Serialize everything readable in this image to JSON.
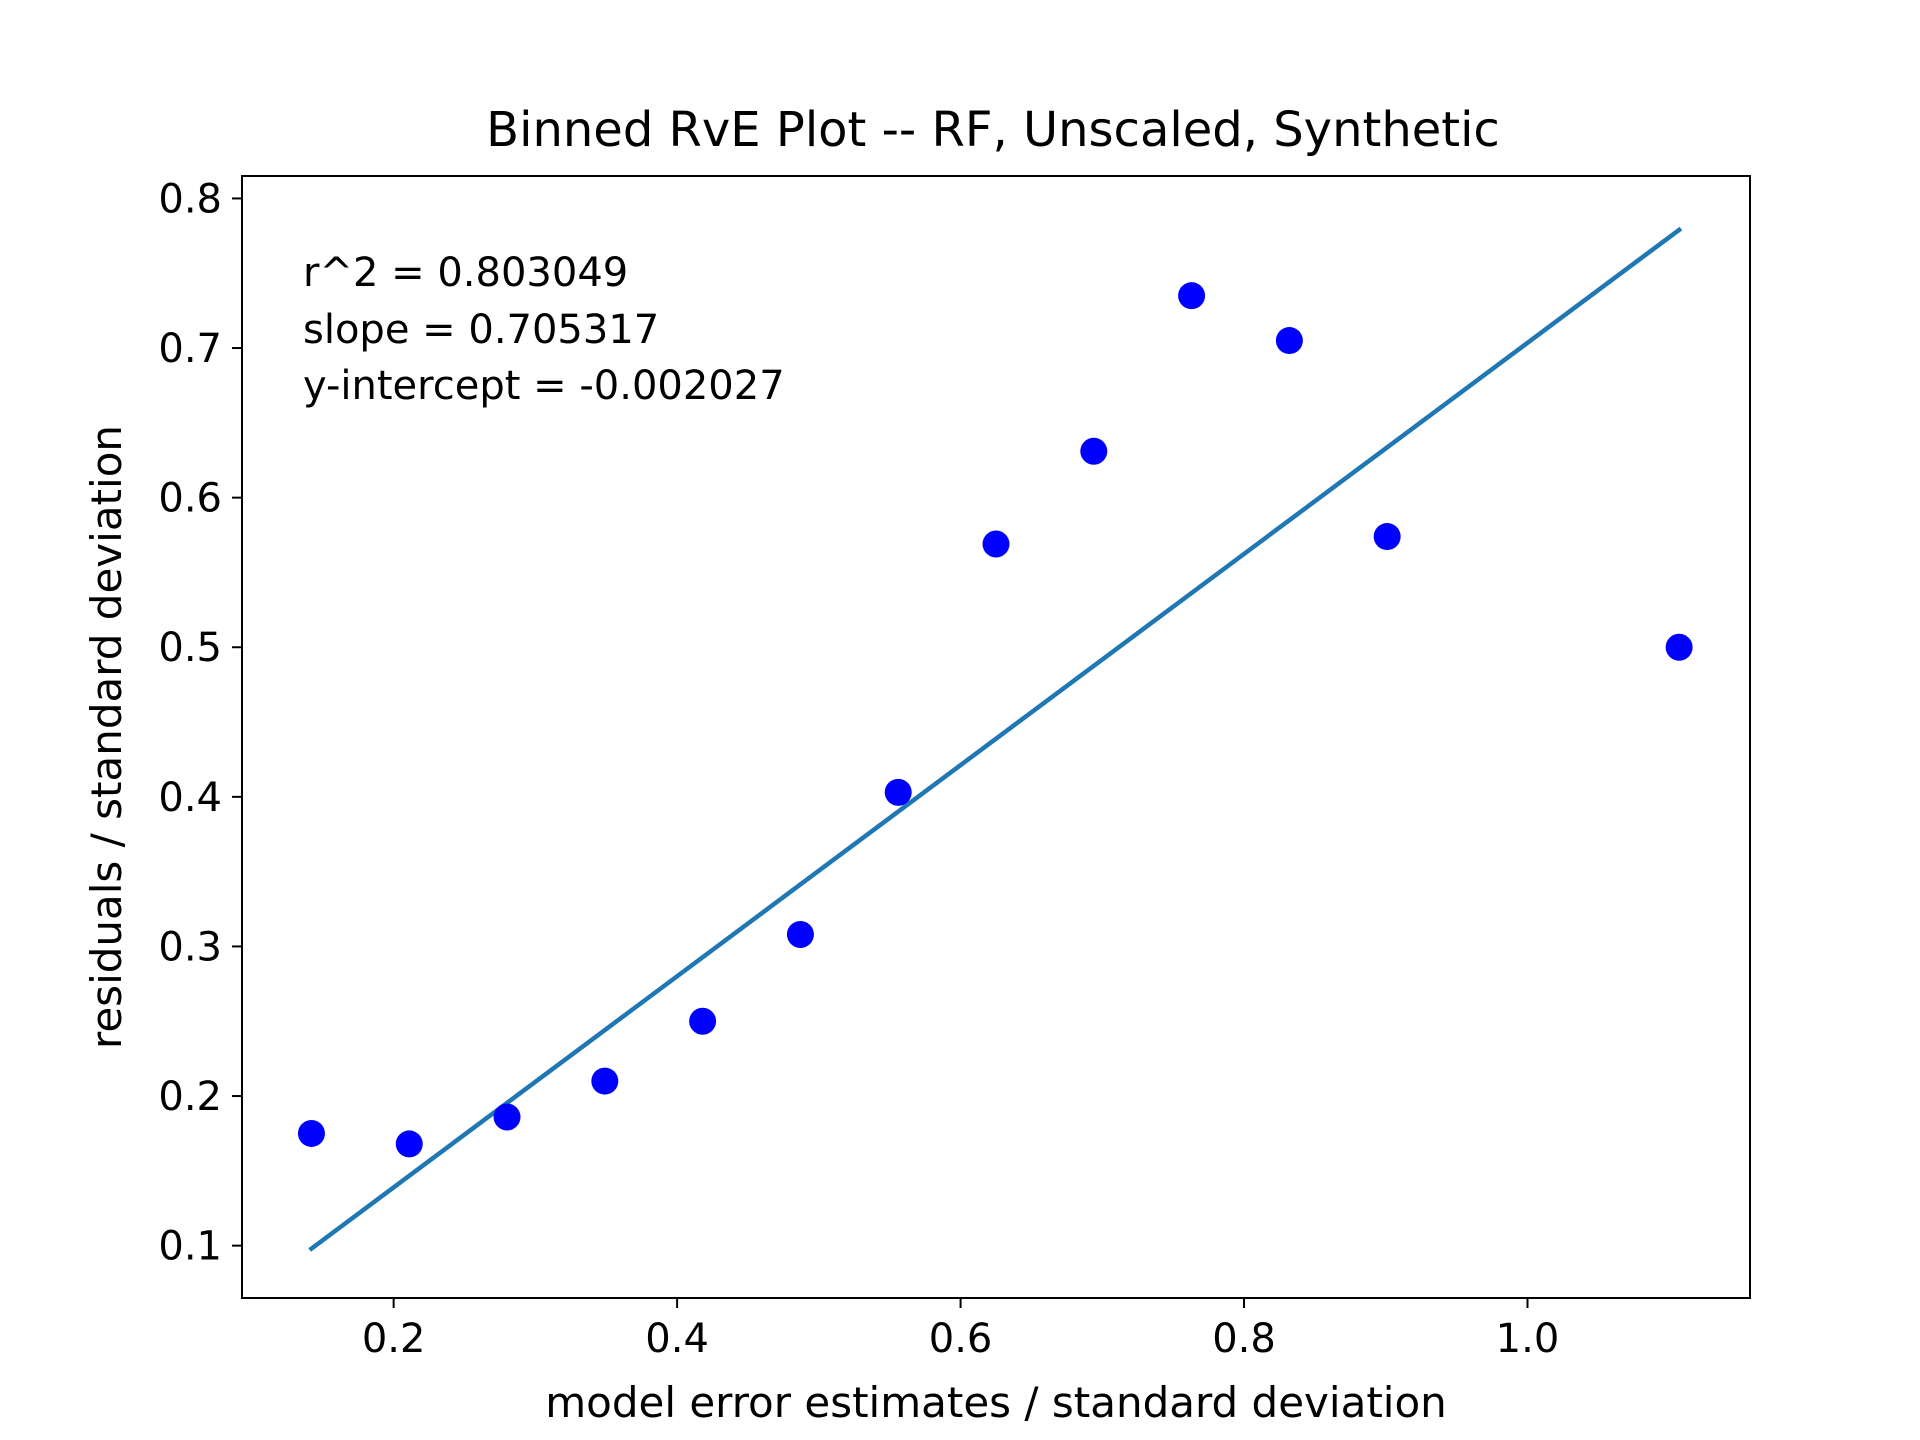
{
  "chart_data": {
    "type": "scatter",
    "title": "Binned RvE Plot -- RF, Unscaled, Synthetic",
    "xlabel": "model error estimates / standard deviation",
    "ylabel": "residuals / standard deviation",
    "xlim": [
      0.093,
      1.157
    ],
    "ylim": [
      0.065,
      0.815
    ],
    "xticks": [
      0.2,
      0.4,
      0.6,
      0.8,
      1.0
    ],
    "xtick_labels": [
      "0.2",
      "0.4",
      "0.6",
      "0.8",
      "1.0"
    ],
    "yticks": [
      0.1,
      0.2,
      0.3,
      0.4,
      0.5,
      0.6,
      0.7,
      0.8
    ],
    "ytick_labels": [
      "0.1",
      "0.2",
      "0.3",
      "0.4",
      "0.5",
      "0.6",
      "0.7",
      "0.8"
    ],
    "grid": false,
    "points": {
      "x": [
        0.142,
        0.211,
        0.28,
        0.349,
        0.418,
        0.487,
        0.556,
        0.625,
        0.694,
        0.763,
        0.832,
        0.901,
        1.107
      ],
      "y": [
        0.175,
        0.168,
        0.186,
        0.21,
        0.25,
        0.308,
        0.403,
        0.569,
        0.631,
        0.735,
        0.705,
        0.574,
        0.5
      ],
      "color": "#0000ff"
    },
    "fit_line": {
      "x": [
        0.142,
        1.107
      ],
      "y": [
        0.098,
        0.779
      ],
      "color": "#1f77b4"
    },
    "annotations": [
      "r^2 = 0.803049",
      "slope = 0.705317",
      "y-intercept = -0.002027"
    ]
  }
}
